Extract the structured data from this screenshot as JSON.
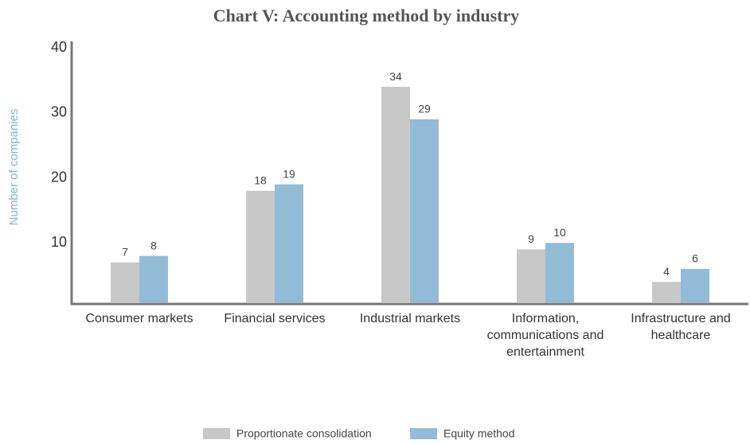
{
  "chart_data": {
    "type": "bar",
    "title": "Chart V: Accounting method by industry",
    "ylabel": "Number of companies",
    "categories": [
      "Consumer markets",
      "Financial services",
      "Industrial markets",
      "Information, communications and entertainment",
      "Infrastructure and healthcare"
    ],
    "series": [
      {
        "name": "Proportionate consolidation",
        "color": "#c8c8c9",
        "values": [
          7,
          18,
          34,
          9,
          4
        ]
      },
      {
        "name": "Equity method",
        "color": "#92bcd6",
        "values": [
          8,
          19,
          29,
          10,
          6
        ]
      }
    ],
    "ylim": [
      0,
      40
    ],
    "yticks": [
      10,
      20,
      30,
      40
    ],
    "grid": false
  }
}
